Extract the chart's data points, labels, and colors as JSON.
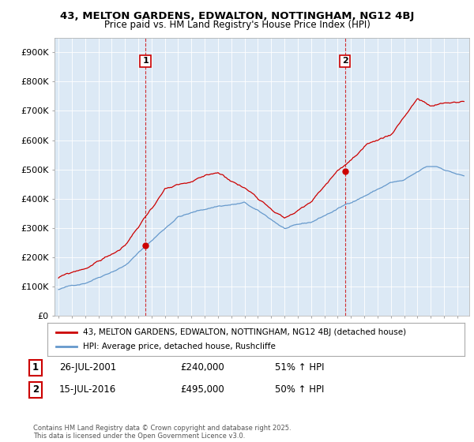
{
  "title1": "43, MELTON GARDENS, EDWALTON, NOTTINGHAM, NG12 4BJ",
  "title2": "Price paid vs. HM Land Registry's House Price Index (HPI)",
  "legend1": "43, MELTON GARDENS, EDWALTON, NOTTINGHAM, NG12 4BJ (detached house)",
  "legend2": "HPI: Average price, detached house, Rushcliffe",
  "annotation1_date": "26-JUL-2001",
  "annotation1_price": "£240,000",
  "annotation1_hpi": "51% ↑ HPI",
  "annotation1_year": 2001.54,
  "annotation1_value": 240000,
  "annotation2_date": "15-JUL-2016",
  "annotation2_price": "£495,000",
  "annotation2_hpi": "50% ↑ HPI",
  "annotation2_year": 2016.54,
  "annotation2_value": 495000,
  "property_color": "#cc0000",
  "hpi_color": "#6699cc",
  "vline_color": "#cc0000",
  "plot_bg_color": "#dce9f5",
  "background_color": "#ffffff",
  "grid_color": "#ffffff",
  "ylim": [
    0,
    950000
  ],
  "yticks": [
    0,
    100000,
    200000,
    300000,
    400000,
    500000,
    600000,
    700000,
    800000,
    900000
  ],
  "ytick_labels": [
    "£0",
    "£100K",
    "£200K",
    "£300K",
    "£400K",
    "£500K",
    "£600K",
    "£700K",
    "£800K",
    "£900K"
  ],
  "copyright": "Contains HM Land Registry data © Crown copyright and database right 2025.\nThis data is licensed under the Open Government Licence v3.0.",
  "xlim_start": 1994.7,
  "xlim_end": 2025.9
}
